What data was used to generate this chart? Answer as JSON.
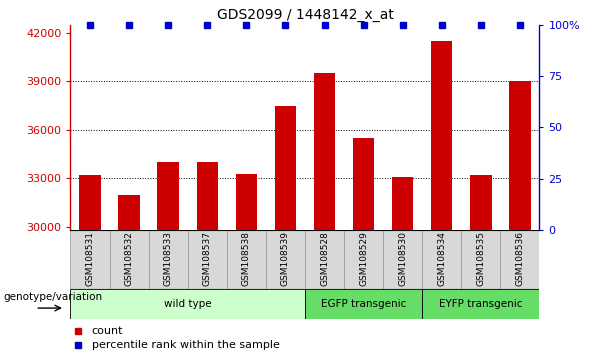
{
  "title": "GDS2099 / 1448142_x_at",
  "categories": [
    "GSM108531",
    "GSM108532",
    "GSM108533",
    "GSM108537",
    "GSM108538",
    "GSM108539",
    "GSM108528",
    "GSM108529",
    "GSM108530",
    "GSM108534",
    "GSM108535",
    "GSM108536"
  ],
  "count_values": [
    33200,
    32000,
    34000,
    34000,
    33300,
    37500,
    39500,
    35500,
    33100,
    41500,
    33200,
    39000
  ],
  "percentile_values": [
    100,
    100,
    100,
    100,
    100,
    100,
    100,
    100,
    100,
    100,
    100,
    100
  ],
  "bar_color": "#cc0000",
  "dot_color": "#0000cc",
  "ylim_left": [
    29800,
    42500
  ],
  "ylim_right": [
    0,
    100
  ],
  "yticks_left": [
    30000,
    33000,
    36000,
    39000,
    42000
  ],
  "yticks_right": [
    0,
    25,
    50,
    75,
    100
  ],
  "ytick_labels_right": [
    "0",
    "25",
    "50",
    "75",
    "100%"
  ],
  "grid_values": [
    33000,
    36000,
    39000
  ],
  "group_labels": [
    "wild type",
    "EGFP transgenic",
    "EYFP transgenic"
  ],
  "group_ranges": [
    [
      0,
      6
    ],
    [
      6,
      9
    ],
    [
      9,
      12
    ]
  ],
  "group_colors": [
    "#ccffcc",
    "#66dd66",
    "#66dd66"
  ],
  "legend_count_color": "#cc0000",
  "legend_dot_color": "#0000cc",
  "xlabel_group": "genotype/variation",
  "background_color": "#ffffff",
  "title_fontsize": 10,
  "tick_fontsize": 8,
  "category_fontsize": 6.5
}
